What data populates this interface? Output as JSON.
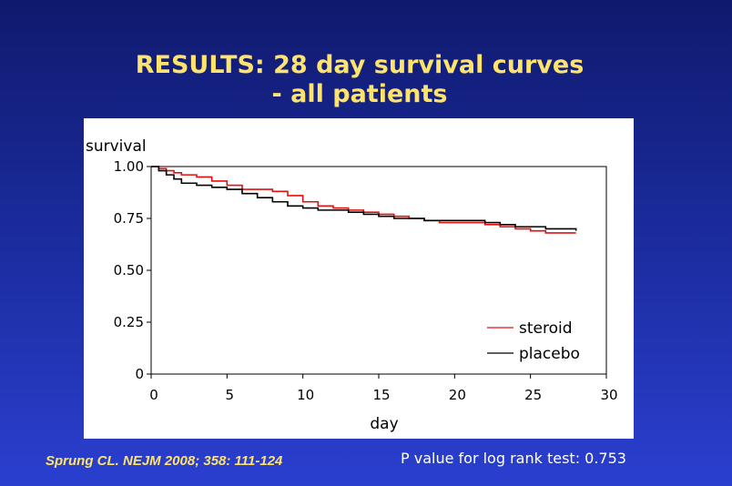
{
  "slide": {
    "title_line1": "RESULTS: 28 day survival curves",
    "title_line2": "- all patients",
    "citation": "Sprung CL.  NEJM 2008; 358: 111-124",
    "pvalue_text": "P value for log rank test: 0.753"
  },
  "chart_data": {
    "type": "line",
    "title": "",
    "xlabel": "day",
    "ylabel": "survival",
    "xlim": [
      0,
      30
    ],
    "ylim": [
      0,
      1.0
    ],
    "x_ticks": [
      0,
      5,
      10,
      15,
      20,
      25,
      30
    ],
    "x_tick_labels": [
      "0",
      "5",
      "10",
      "15",
      "20",
      "25",
      "30"
    ],
    "y_ticks": [
      0,
      0.25,
      0.5,
      0.75,
      1.0
    ],
    "y_tick_labels": [
      "0",
      "0.25",
      "0.50",
      "0.75",
      "1.00"
    ],
    "legend_position": "bottom-right",
    "series": [
      {
        "name": "steroid",
        "color": "#e01010",
        "x": [
          0,
          0.5,
          1,
          1.5,
          2,
          3,
          4,
          5,
          6,
          7,
          8,
          9,
          10,
          11,
          12,
          13,
          14,
          15,
          16,
          17,
          18,
          19,
          20,
          21,
          22,
          23,
          24,
          25,
          26,
          27,
          28
        ],
        "y": [
          1.0,
          0.99,
          0.98,
          0.97,
          0.96,
          0.95,
          0.93,
          0.91,
          0.89,
          0.89,
          0.88,
          0.86,
          0.83,
          0.81,
          0.8,
          0.79,
          0.78,
          0.77,
          0.76,
          0.75,
          0.74,
          0.73,
          0.73,
          0.73,
          0.72,
          0.71,
          0.7,
          0.69,
          0.68,
          0.68,
          0.68
        ]
      },
      {
        "name": "placebo",
        "color": "#000000",
        "x": [
          0,
          0.5,
          1,
          1.5,
          2,
          3,
          4,
          5,
          6,
          7,
          8,
          9,
          10,
          11,
          12,
          13,
          14,
          15,
          16,
          17,
          18,
          19,
          20,
          21,
          22,
          23,
          24,
          25,
          26,
          27,
          28
        ],
        "y": [
          1.0,
          0.98,
          0.96,
          0.94,
          0.92,
          0.91,
          0.9,
          0.89,
          0.87,
          0.85,
          0.83,
          0.81,
          0.8,
          0.79,
          0.79,
          0.78,
          0.77,
          0.76,
          0.75,
          0.75,
          0.74,
          0.74,
          0.74,
          0.74,
          0.73,
          0.72,
          0.71,
          0.71,
          0.7,
          0.7,
          0.69
        ]
      }
    ]
  }
}
